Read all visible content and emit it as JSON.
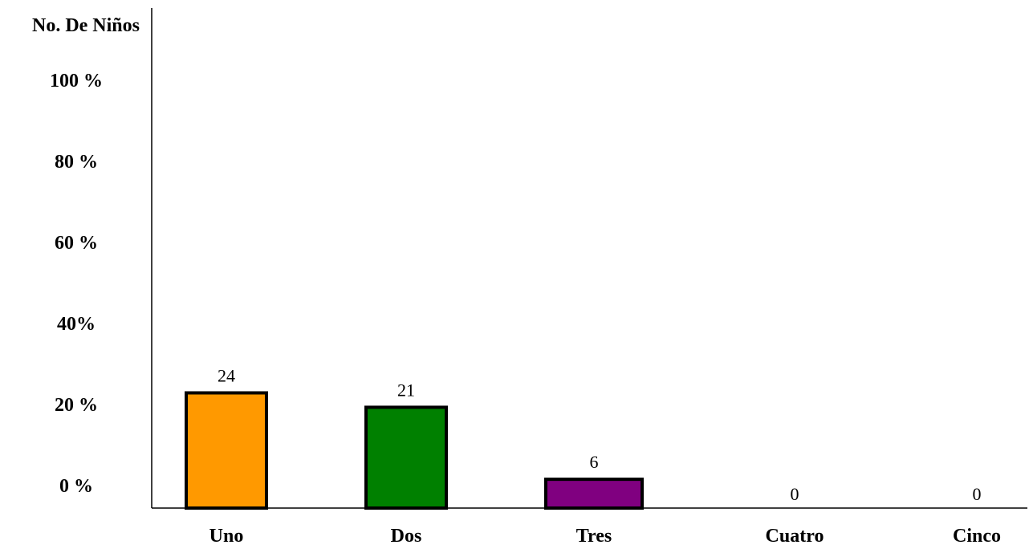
{
  "chart_data": {
    "type": "bar",
    "ylabel": "No. De Niños",
    "xlabel": "",
    "y_tick_labels": [
      "0 %",
      "20 %",
      "40%",
      "60 %",
      "80 %",
      "100 %"
    ],
    "ylim": [
      0,
      100
    ],
    "categories": [
      "Uno",
      "Dos",
      "Tres",
      "Cuatro",
      "Cinco"
    ],
    "values": [
      24,
      21,
      6,
      0,
      0
    ],
    "data_labels": [
      "24",
      "21",
      "6",
      "0",
      "0"
    ],
    "colors": [
      "#FF9900",
      "#008000",
      "#800080",
      "#000000",
      "#000000"
    ],
    "bar_outline": "#000000",
    "grid": false,
    "legend": "none"
  }
}
